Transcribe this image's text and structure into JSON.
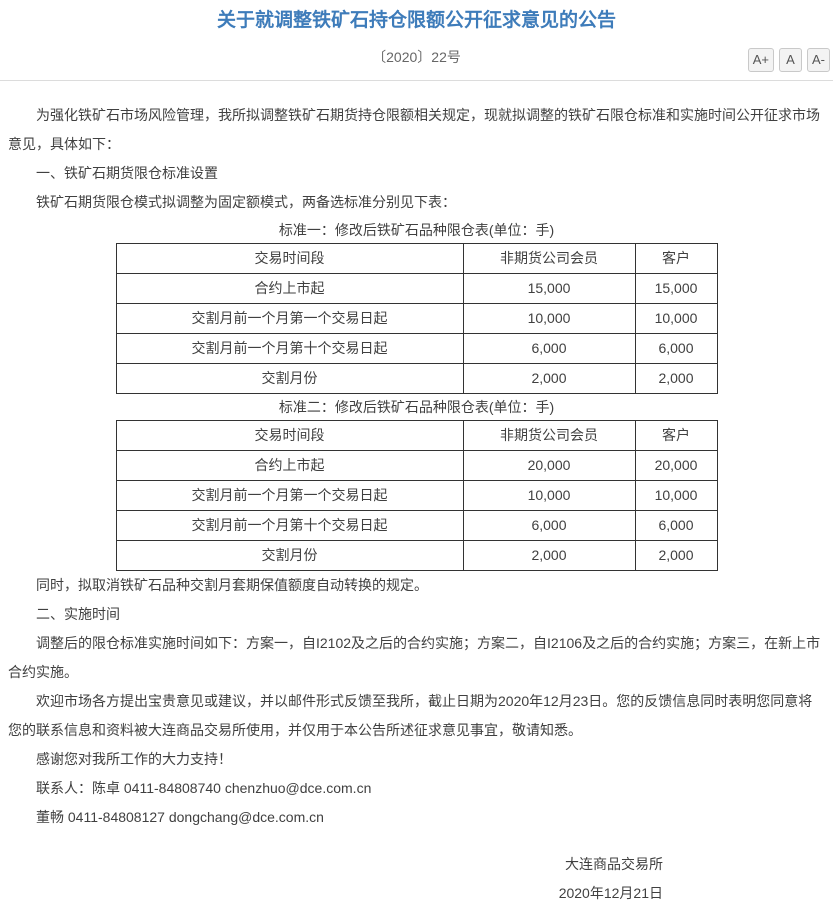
{
  "header": {
    "title": "关于就调整铁矿石持仓限额公开征求意见的公告",
    "doc_number": "〔2020〕22号",
    "font_controls": {
      "increase": "A+",
      "default": "A",
      "decrease": "A-"
    }
  },
  "body": {
    "p_intro": "为强化铁矿石市场风险管理，我所拟调整铁矿石期货持仓限额相关规定，现就拟调整的铁矿石限仓标准和实施时间公开征求市场意见，具体如下：",
    "h_section1": "一、铁矿石期货限仓标准设置",
    "p_mode": "铁矿石期货限仓模式拟调整为固定额模式，两备选标准分别见下表：",
    "p_hedge": "同时，拟取消铁矿石品种交割月套期保值额度自动转换的规定。",
    "h_section2": "二、实施时间",
    "p_schedule": "调整后的限仓标准实施时间如下：方案一，自I2102及之后的合约实施；方案二，自I2106及之后的合约实施；方案三，在新上市合约实施。",
    "p_feedback": "欢迎市场各方提出宝贵意见或建议，并以邮件形式反馈至我所，截止日期为2020年12月23日。您的反馈信息同时表明您同意将您的联系信息和资料被大连商品交易所使用，并仅用于本公告所述征求意见事宜，敬请知悉。",
    "p_thanks": "感谢您对我所工作的大力支持！",
    "p_contact1": "联系人：陈卓 0411-84808740 chenzhuo@dce.com.cn",
    "p_contact2": "董畅 0411-84808127 dongchang@dce.com.cn"
  },
  "tables": [
    {
      "caption": "标准一：修改后铁矿石品种限仓表(单位：手)",
      "headers": [
        "交易时间段",
        "非期货公司会员",
        "客户"
      ],
      "rows": [
        [
          "合约上市起",
          "15,000",
          "15,000"
        ],
        [
          "交割月前一个月第一个交易日起",
          "10,000",
          "10,000"
        ],
        [
          "交割月前一个月第十个交易日起",
          "6,000",
          "6,000"
        ],
        [
          "交割月份",
          "2,000",
          "2,000"
        ]
      ]
    },
    {
      "caption": "标准二：修改后铁矿石品种限仓表(单位：手)",
      "headers": [
        "交易时间段",
        "非期货公司会员",
        "客户"
      ],
      "rows": [
        [
          "合约上市起",
          "20,000",
          "20,000"
        ],
        [
          "交割月前一个月第一个交易日起",
          "10,000",
          "10,000"
        ],
        [
          "交割月前一个月第十个交易日起",
          "6,000",
          "6,000"
        ],
        [
          "交割月份",
          "2,000",
          "2,000"
        ]
      ]
    }
  ],
  "signature": {
    "org": "大连商品交易所",
    "date": "2020年12月21日"
  },
  "colors": {
    "title_blue": "#3e7cba",
    "body_text": "#404040",
    "divider": "#dcdcdc",
    "table_border": "#333333"
  }
}
